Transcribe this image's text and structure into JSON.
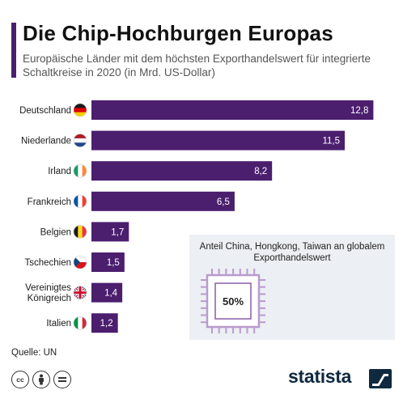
{
  "header": {
    "title": "Die Chip-Hochburgen Europas",
    "subtitle": "Europäische Länder mit dem höchsten Exporthandelswert für integrierte Schaltkreise in 2020 (in Mrd. US-Dollar)"
  },
  "chart_data": {
    "type": "bar",
    "orientation": "horizontal",
    "categories": [
      "Deutschland",
      "Niederlande",
      "Irland",
      "Frankreich",
      "Belgien",
      "Tschechien",
      "Vereinigtes Königreich",
      "Italien"
    ],
    "values": [
      12.8,
      11.5,
      8.2,
      6.5,
      1.7,
      1.5,
      1.4,
      1.2
    ],
    "value_labels": [
      "12,8",
      "11,5",
      "8,2",
      "6,5",
      "1,7",
      "1,5",
      "1,4",
      "1,2"
    ],
    "category_label_lines": [
      [
        "Deutschland"
      ],
      [
        "Niederlande"
      ],
      [
        "Irland"
      ],
      [
        "Frankreich"
      ],
      [
        "Belgien"
      ],
      [
        "Tschechien"
      ],
      [
        "Vereinigtes",
        "Königreich"
      ],
      [
        "Italien"
      ]
    ],
    "flags": [
      "de-flag-icon",
      "nl-flag-icon",
      "ie-flag-icon",
      "fr-flag-icon",
      "be-flag-icon",
      "cz-flag-icon",
      "gb-flag-icon",
      "it-flag-icon"
    ],
    "bar_color": "#4b1e6e",
    "xlim": [
      0,
      13.3
    ],
    "grid": false,
    "legend": "none"
  },
  "inset": {
    "caption": "Anteil China, Hongkong, Taiwan an globalem Exporthandelswert",
    "value": "50%",
    "icon": "microchip-icon"
  },
  "footer": {
    "source": "Quelle: UN",
    "licenses": [
      "cc",
      "by",
      "nd"
    ],
    "brand": "statista"
  }
}
